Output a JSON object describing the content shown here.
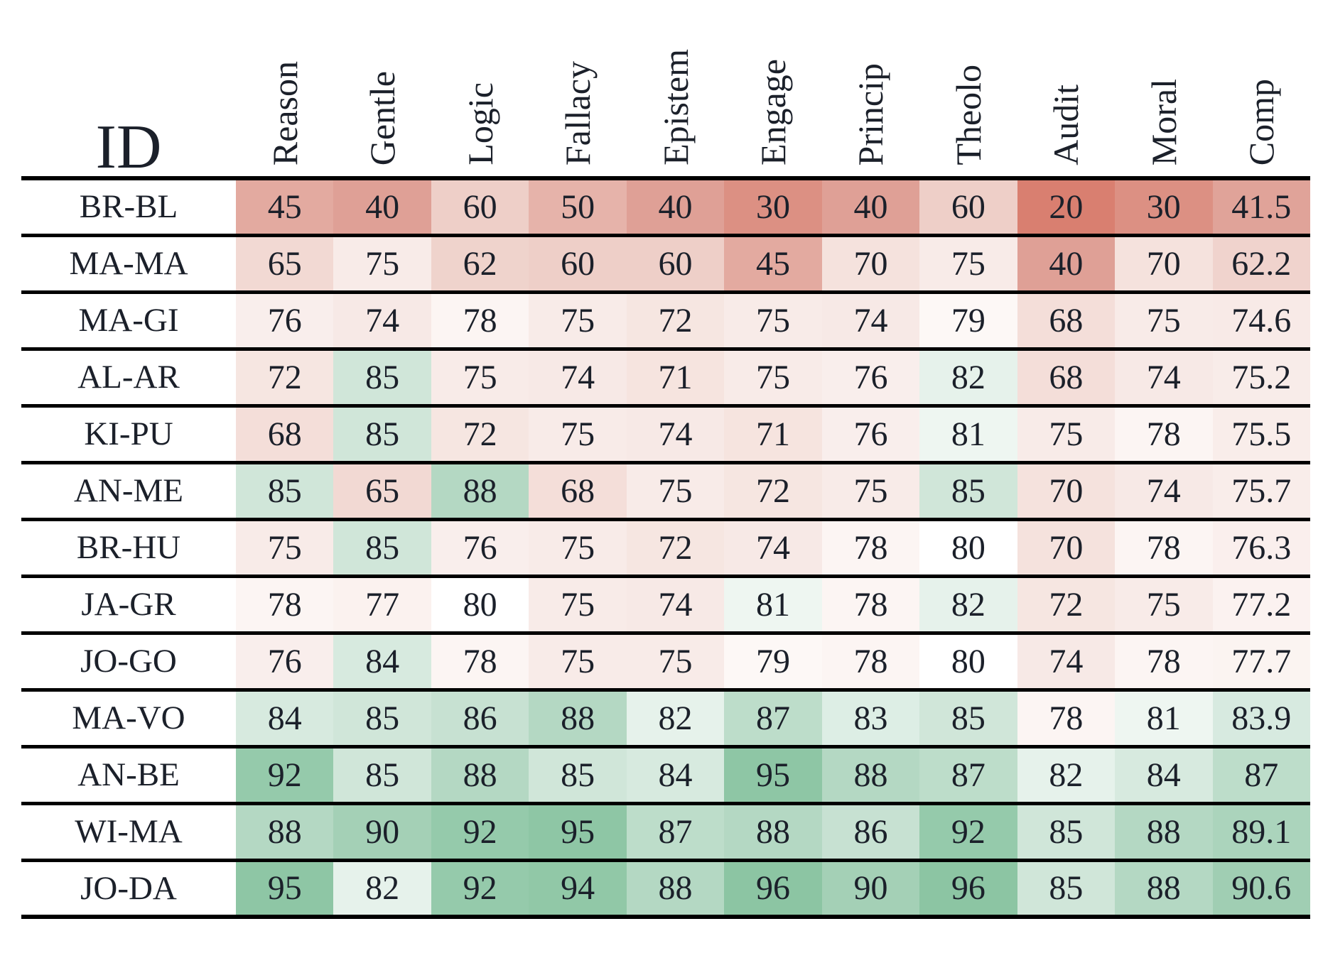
{
  "chart_data": {
    "type": "heatmap",
    "id_column_header": "ID",
    "columns": [
      "Reason",
      "Gentle",
      "Logic",
      "Fallacy",
      "Epistem",
      "Engage",
      "Princip",
      "Theolo",
      "Audit",
      "Moral",
      "Comp"
    ],
    "rows": [
      "BR-BL",
      "MA-MA",
      "MA-GI",
      "AL-AR",
      "KI-PU",
      "AN-ME",
      "BR-HU",
      "JA-GR",
      "JO-GO",
      "MA-VO",
      "AN-BE",
      "WI-MA",
      "JO-DA"
    ],
    "values": [
      [
        45,
        40,
        60,
        50,
        40,
        30,
        40,
        60,
        20,
        30,
        41.5
      ],
      [
        65,
        75,
        62,
        60,
        60,
        45,
        70,
        75,
        40,
        70,
        62.2
      ],
      [
        76,
        74,
        78,
        75,
        72,
        75,
        74,
        79,
        68,
        75,
        74.6
      ],
      [
        72,
        85,
        75,
        74,
        71,
        75,
        76,
        82,
        68,
        74,
        75.2
      ],
      [
        68,
        85,
        72,
        75,
        74,
        71,
        76,
        81,
        75,
        78,
        75.5
      ],
      [
        85,
        65,
        88,
        68,
        75,
        72,
        75,
        85,
        70,
        74,
        75.7
      ],
      [
        75,
        85,
        76,
        75,
        72,
        74,
        78,
        80,
        70,
        78,
        76.3
      ],
      [
        78,
        77,
        80,
        75,
        74,
        81,
        78,
        82,
        72,
        75,
        77.2
      ],
      [
        76,
        84,
        78,
        75,
        75,
        79,
        78,
        80,
        74,
        78,
        77.7
      ],
      [
        84,
        85,
        86,
        88,
        82,
        87,
        83,
        85,
        78,
        81,
        83.9
      ],
      [
        92,
        85,
        88,
        85,
        84,
        95,
        88,
        87,
        82,
        84,
        87
      ],
      [
        88,
        90,
        92,
        95,
        87,
        88,
        86,
        92,
        85,
        88,
        89.1
      ],
      [
        95,
        82,
        92,
        94,
        88,
        96,
        90,
        96,
        85,
        88,
        90.6
      ]
    ],
    "vmin": 20,
    "midpoint": 80,
    "vmax": 96,
    "legend": "none",
    "grid": "horizontal black rules between rows",
    "colors": {
      "text": "#1b202a",
      "rule": "#000000",
      "background": "#ffffff",
      "colormap_stops": [
        [
          20,
          "#d97f70"
        ],
        [
          40,
          "#dfa096"
        ],
        [
          50,
          "#e6b3aa"
        ],
        [
          60,
          "#eecfc8"
        ],
        [
          70,
          "#f5e2dd"
        ],
        [
          75,
          "#f8ebe8"
        ],
        [
          79,
          "#fdf8f6"
        ],
        [
          80,
          "#ffffff"
        ],
        [
          81,
          "#eef6f1"
        ],
        [
          83,
          "#ddeee5"
        ],
        [
          85,
          "#d0e6d9"
        ],
        [
          88,
          "#b4d8c3"
        ],
        [
          90,
          "#a4d0b6"
        ],
        [
          92,
          "#95caab"
        ],
        [
          96,
          "#8cc5a3"
        ]
      ]
    }
  }
}
